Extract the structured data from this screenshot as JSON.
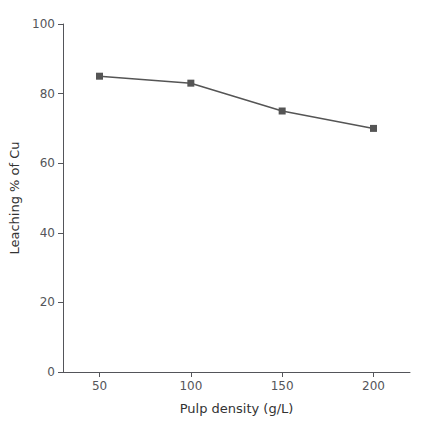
{
  "chart_data": {
    "type": "line",
    "x": [
      50,
      100,
      150,
      200
    ],
    "values": [
      85,
      83,
      75,
      70
    ],
    "xlabel": "Pulp density (g/L)",
    "ylabel": "Leaching % of Cu",
    "xlim": [
      30,
      220
    ],
    "ylim": [
      0,
      100
    ],
    "xticks": [
      50,
      100,
      150,
      200
    ],
    "yticks": [
      0,
      20,
      40,
      60,
      80,
      100
    ],
    "color": "#555555",
    "marker": "square",
    "grid": false
  }
}
